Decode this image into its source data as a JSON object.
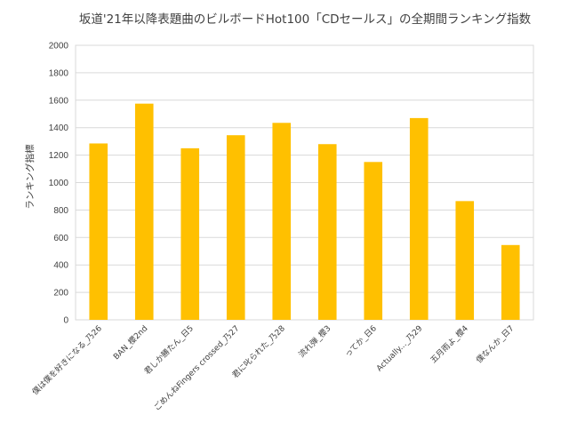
{
  "chart_data": {
    "type": "bar",
    "title": "坂道'21年以降表題曲のビルボードHot100「CDセールス」の全期間ランキング指数",
    "ylabel": "ランキング指標",
    "xlabel": "",
    "categories": [
      "僕は僕を好きになる_乃26",
      "BAN_櫻2nd",
      "君しか勝たん_日5",
      "ごめんねFingers crossed_乃27",
      "君に叱られた_乃28",
      "流れ弾_櫻3",
      "ってか_日6",
      "Actually..._乃29",
      "五月雨よ_櫻4",
      "僕なんか_日7"
    ],
    "values": [
      1285,
      1575,
      1250,
      1345,
      1435,
      1280,
      1150,
      1470,
      865,
      545
    ],
    "ylim": [
      0,
      2000
    ],
    "yticks": [
      0,
      200,
      400,
      600,
      800,
      1000,
      1200,
      1400,
      1600,
      1800,
      2000
    ],
    "grid": true,
    "bar_color": "#FFC000",
    "grid_color": "#D9D9D9",
    "axis_color": "#7F7F7F"
  }
}
